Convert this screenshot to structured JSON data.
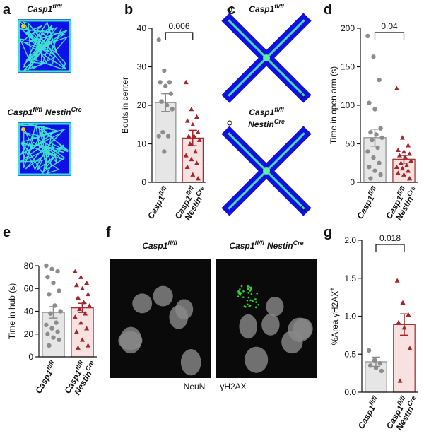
{
  "panel_labels": [
    "a",
    "b",
    "c",
    "d",
    "e",
    "f",
    "g"
  ],
  "panel_a": {
    "labels": [
      [
        "Casp1",
        "fl/fl"
      ],
      [
        "Casp1",
        "fl/fl",
        "Nestin",
        "Cre"
      ]
    ]
  },
  "panel_c": {
    "labels": [
      [
        "Casp1",
        "fl/fl"
      ],
      [
        "Casp1",
        "fl/fl"
      ],
      [
        "Nestin",
        "Cre"
      ]
    ]
  },
  "panel_f": {
    "titles": [
      [
        "Casp1",
        "fl/fl"
      ],
      [
        "Casp1",
        "fl/fl",
        "Nestin",
        "Cre"
      ]
    ],
    "stains": [
      "NeuN",
      "γH2AX"
    ]
  },
  "chart_data": [
    {
      "type": "bar",
      "ylabel": [
        "Bouts in center"
      ],
      "categories": [
        [
          [
            "Casp1",
            "fl/fl"
          ]
        ],
        [
          [
            "Casp1",
            "fl/fl"
          ],
          [
            "Nestin",
            "Cre"
          ]
        ]
      ],
      "values": [
        20.7,
        11.5
      ],
      "errors": [
        2.3,
        2.0
      ],
      "points": [
        [
          37,
          29,
          26,
          26,
          25,
          23,
          21,
          20,
          19,
          13,
          12,
          12,
          8
        ],
        [
          26,
          19,
          17,
          16,
          15,
          13,
          12,
          12,
          11,
          10,
          8,
          7,
          6,
          5,
          4,
          2,
          1
        ]
      ],
      "colors": [
        "#e6e6e6",
        "#f7e1e1"
      ],
      "edge_colors": [
        "#8c8c8c",
        "#a3262a"
      ],
      "markers": [
        "circle",
        "triangle"
      ],
      "ylim": [
        0,
        40
      ],
      "yticks": [
        0,
        10,
        20,
        30,
        40
      ],
      "annotation": "0.006"
    },
    {
      "type": "bar",
      "ylabel": [
        "Time in open arm (s)"
      ],
      "categories": [
        [
          [
            "Casp1",
            "fl/fl"
          ]
        ],
        [
          [
            "Casp1",
            "fl/fl"
          ],
          [
            "Nestin",
            "Cre"
          ]
        ]
      ],
      "values": [
        58,
        30
      ],
      "errors": [
        11,
        5
      ],
      "points": [
        [
          190,
          163,
          133,
          103,
          95,
          70,
          65,
          62,
          58,
          55,
          45,
          40,
          32,
          25,
          20,
          15,
          10,
          5
        ],
        [
          122,
          58,
          48,
          42,
          40,
          37,
          35,
          33,
          28,
          25,
          22,
          20,
          18,
          15,
          12,
          10,
          5
        ]
      ],
      "colors": [
        "#e6e6e6",
        "#f7e1e1"
      ],
      "edge_colors": [
        "#8c8c8c",
        "#a3262a"
      ],
      "markers": [
        "circle",
        "triangle"
      ],
      "ylim": [
        0,
        200
      ],
      "yticks": [
        0,
        50,
        100,
        150,
        200
      ],
      "annotation": "0.04"
    },
    {
      "type": "bar",
      "ylabel": [
        "Time in hub (s)"
      ],
      "categories": [
        [
          [
            "Casp1",
            "fl/fl"
          ]
        ],
        [
          [
            "Casp1",
            "fl/fl"
          ],
          [
            "Nestin",
            "Cre"
          ]
        ]
      ],
      "values": [
        39,
        43
      ],
      "errors": [
        5,
        4
      ],
      "points": [
        [
          80,
          77,
          75,
          70,
          65,
          58,
          55,
          45,
          40,
          38,
          30,
          28,
          25,
          22,
          20,
          17,
          15,
          10
        ],
        [
          75,
          70,
          65,
          63,
          60,
          55,
          52,
          48,
          45,
          42,
          38,
          35,
          30,
          25,
          22,
          15,
          10,
          8
        ]
      ],
      "colors": [
        "#e6e6e6",
        "#f7e1e1"
      ],
      "edge_colors": [
        "#8c8c8c",
        "#a3262a"
      ],
      "markers": [
        "circle",
        "triangle"
      ],
      "ylim": [
        0,
        80
      ],
      "yticks": [
        0,
        20,
        40,
        60,
        80
      ]
    },
    {
      "type": "bar",
      "ylabel": [
        "%Area γH2AX",
        "+"
      ],
      "categories": [
        [
          [
            "Casp1",
            "fl/fl"
          ]
        ],
        [
          [
            "Casp1",
            "fl/fl"
          ],
          [
            "Nestin",
            "Cre"
          ]
        ]
      ],
      "values": [
        0.4,
        0.89
      ],
      "errors": [
        0.06,
        0.14
      ],
      "points": [
        [
          0.55,
          0.42,
          0.38,
          0.35,
          0.32,
          0.28
        ],
        [
          1.47,
          1.18,
          1.02,
          0.92,
          0.85,
          0.58,
          0.15
        ]
      ],
      "colors": [
        "#e6e6e6",
        "#f7e1e1"
      ],
      "edge_colors": [
        "#8c8c8c",
        "#a3262a"
      ],
      "markers": [
        "circle",
        "triangle"
      ],
      "ylim": [
        0,
        2.0
      ],
      "yticks": [
        {
          "value": 0,
          "label": "0.0"
        },
        0.5,
        {
          "value": 1,
          "label": "1.0"
        },
        1.5,
        {
          "value": 2,
          "label": "2.0"
        }
      ],
      "annotation": "0.018"
    }
  ]
}
